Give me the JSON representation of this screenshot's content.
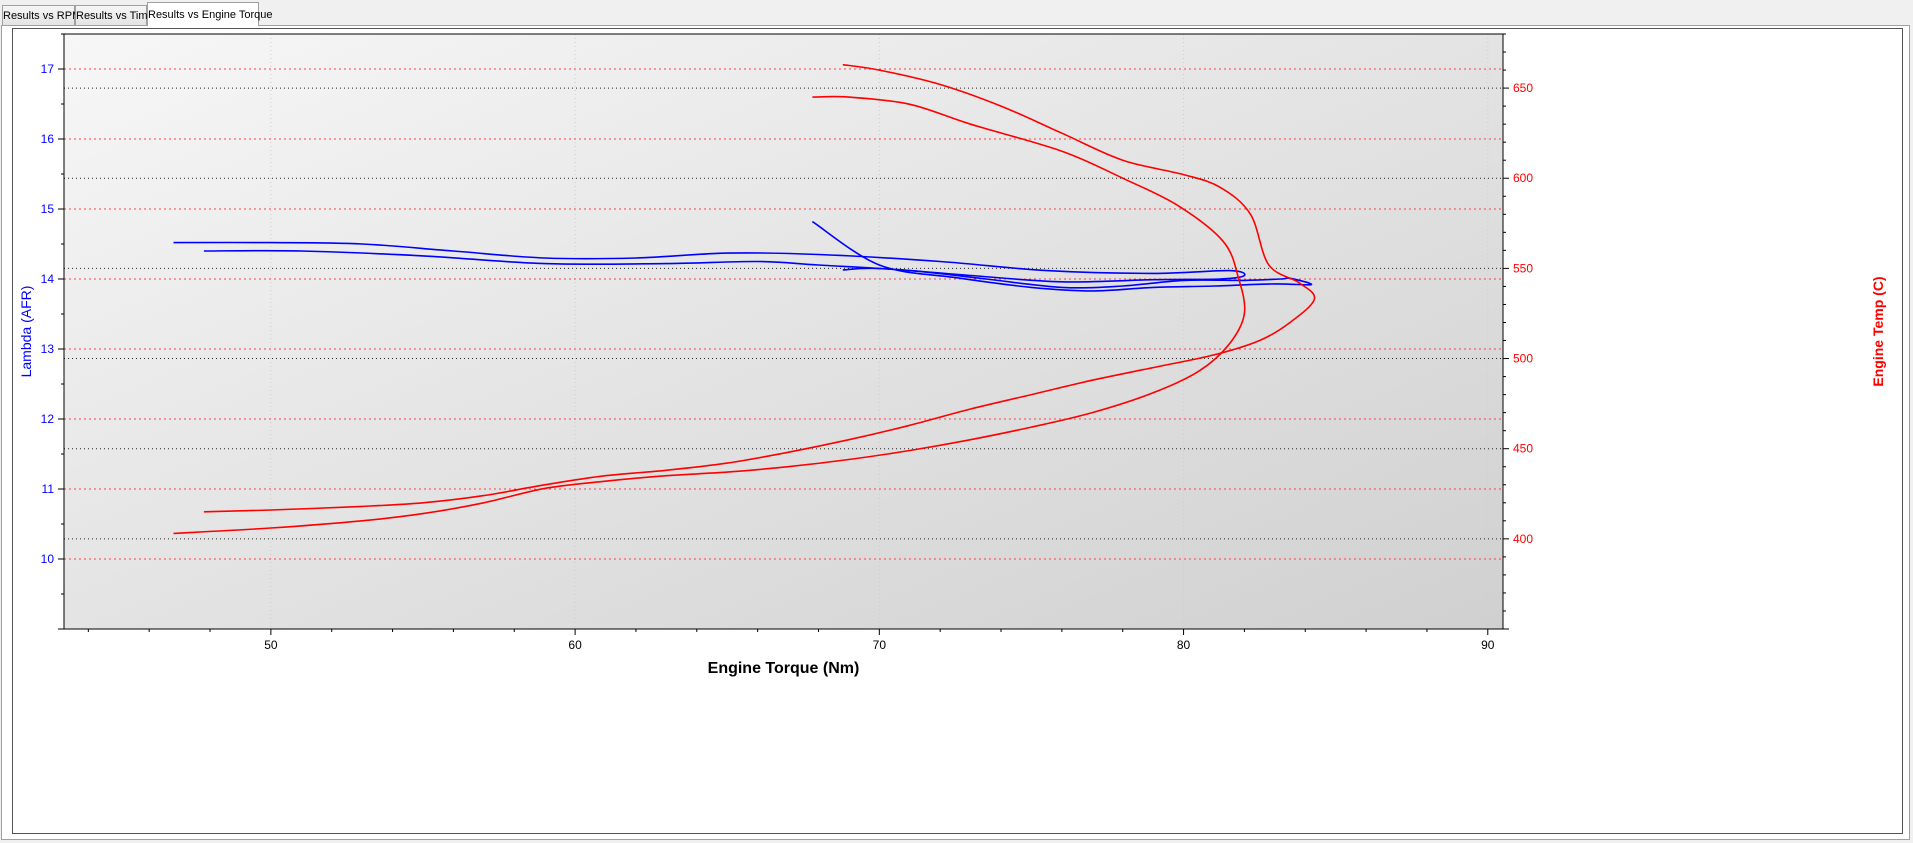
{
  "tabs": [
    {
      "label": "Results vs RPM",
      "active": false
    },
    {
      "label": "Results vs Time",
      "active": false
    },
    {
      "label": "Results vs Engine Torque",
      "active": true
    }
  ],
  "colors": {
    "lambda": "#0000ff",
    "temp": "#ff0000",
    "grid_left": "#ff4040",
    "grid_right": "#222222",
    "plot_bg_start": "#f7f7f7",
    "plot_bg_end": "#d0d0d0"
  },
  "chart_data": {
    "type": "line",
    "title": "",
    "xlabel": "Engine Torque (Nm)",
    "ylabel_left": "Lambda (AFR)",
    "ylabel_right": "Engine Temp (C)",
    "xlim": [
      43.2,
      90.5
    ],
    "ylim_left": [
      9.0,
      17.5
    ],
    "ylim_right": [
      350,
      680
    ],
    "x_ticks": [
      50,
      60,
      70,
      80,
      90
    ],
    "y_ticks_left": [
      10,
      11,
      12,
      13,
      14,
      15,
      16,
      17
    ],
    "y_ticks_right": [
      400,
      450,
      500,
      550,
      600,
      650
    ],
    "grid": true,
    "series": [
      {
        "name": "",
        "axis": "left",
        "color": "#0000ff",
        "points": [
          [
            46.8,
            14.52
          ],
          [
            50,
            14.52
          ],
          [
            53,
            14.5
          ],
          [
            56,
            14.4
          ],
          [
            59,
            14.3
          ],
          [
            62,
            14.3
          ],
          [
            65,
            14.37
          ],
          [
            68,
            14.35
          ],
          [
            72,
            14.25
          ],
          [
            75.5,
            14.12
          ],
          [
            79,
            14.08
          ],
          [
            81.5,
            14.12
          ],
          [
            82.0,
            14.05
          ],
          [
            81.2,
            14.0
          ],
          [
            79,
            13.99
          ],
          [
            76,
            13.96
          ],
          [
            73,
            14.05
          ],
          [
            70,
            14.15
          ],
          [
            68.8,
            14.13
          ]
        ]
      },
      {
        "name": "",
        "axis": "left",
        "color": "#0000ff",
        "points": [
          [
            47.8,
            14.4
          ],
          [
            51,
            14.4
          ],
          [
            55,
            14.33
          ],
          [
            59,
            14.22
          ],
          [
            63,
            14.22
          ],
          [
            66,
            14.25
          ],
          [
            68,
            14.2
          ],
          [
            71,
            14.12
          ],
          [
            73.5,
            14.0
          ],
          [
            76,
            13.88
          ],
          [
            78,
            13.9
          ],
          [
            80,
            13.98
          ],
          [
            82,
            13.98
          ],
          [
            83.2,
            14.0
          ],
          [
            83.5,
            14.01
          ],
          [
            84.2,
            13.92
          ],
          [
            83,
            13.93
          ],
          [
            81,
            13.9
          ],
          [
            79,
            13.88
          ],
          [
            77,
            13.83
          ],
          [
            75,
            13.88
          ],
          [
            72.5,
            14.02
          ],
          [
            70,
            14.2
          ],
          [
            67.8,
            14.82
          ]
        ]
      },
      {
        "name": "",
        "axis": "right",
        "color": "#ff0000",
        "points": [
          [
            46.8,
            403
          ],
          [
            50,
            406
          ],
          [
            53,
            410
          ],
          [
            55,
            414
          ],
          [
            57,
            420
          ],
          [
            59,
            428
          ],
          [
            61,
            432
          ],
          [
            63,
            435
          ],
          [
            65,
            437
          ],
          [
            67,
            440
          ],
          [
            69,
            444
          ],
          [
            71,
            449
          ],
          [
            73,
            455
          ],
          [
            75,
            462
          ],
          [
            77,
            470
          ],
          [
            79,
            481
          ],
          [
            80.5,
            493
          ],
          [
            81.5,
            508
          ],
          [
            82.0,
            525
          ],
          [
            81.8,
            545
          ],
          [
            81.3,
            565
          ],
          [
            79.8,
            585
          ],
          [
            78,
            600
          ],
          [
            76,
            615
          ],
          [
            73,
            630
          ],
          [
            71,
            641
          ],
          [
            69,
            645
          ],
          [
            67.8,
            645
          ]
        ]
      },
      {
        "name": "",
        "axis": "right",
        "color": "#ff0000",
        "points": [
          [
            47.8,
            415
          ],
          [
            50,
            416
          ],
          [
            53,
            418
          ],
          [
            55,
            420
          ],
          [
            57,
            424
          ],
          [
            59,
            430
          ],
          [
            61,
            435
          ],
          [
            63,
            438
          ],
          [
            65,
            442
          ],
          [
            67,
            448
          ],
          [
            69,
            455
          ],
          [
            71,
            463
          ],
          [
            73,
            472
          ],
          [
            75,
            480
          ],
          [
            77,
            488
          ],
          [
            79,
            495
          ],
          [
            81,
            502
          ],
          [
            82.5,
            510
          ],
          [
            83.5,
            520
          ],
          [
            84.3,
            533
          ],
          [
            83.8,
            542
          ],
          [
            82.8,
            552
          ],
          [
            82.2,
            580
          ],
          [
            81.2,
            595
          ],
          [
            80,
            602
          ],
          [
            78,
            610
          ],
          [
            76,
            625
          ],
          [
            74,
            640
          ],
          [
            72,
            652
          ],
          [
            70,
            660
          ],
          [
            68.8,
            663
          ]
        ]
      }
    ]
  }
}
